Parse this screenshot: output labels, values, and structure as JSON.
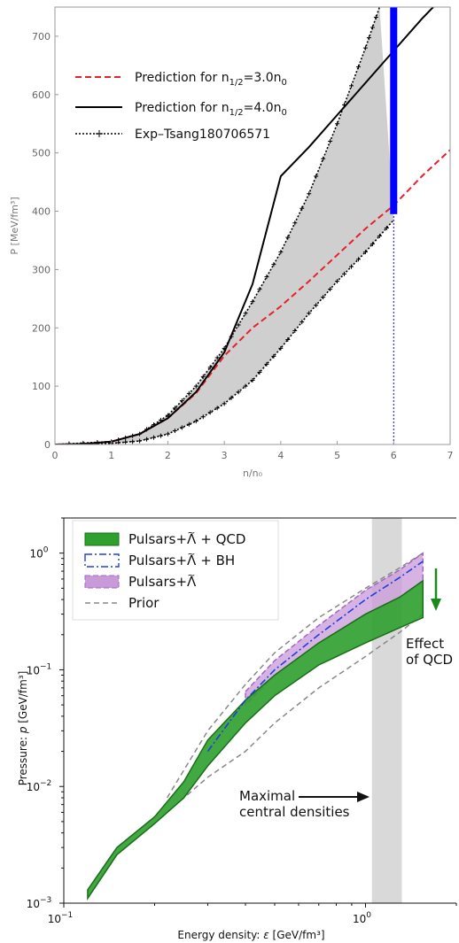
{
  "chart_data": [
    {
      "type": "line",
      "xlabel": "n/n₀",
      "ylabel": "P [MeV/fm³]",
      "xlim": [
        0,
        7
      ],
      "ylim": [
        0,
        750
      ],
      "xticks": [
        "0",
        "1",
        "2",
        "3",
        "4",
        "5",
        "6",
        "7"
      ],
      "yticks": [
        "0",
        "100",
        "200",
        "300",
        "400",
        "500",
        "600",
        "700"
      ],
      "grid": false,
      "legend_position": "top-left",
      "series": [
        {
          "name": "Prediction for n1/2=3.0n0",
          "legend_main": "Prediction for n",
          "legend_sub": "1/2",
          "legend_tail": "=3.0n",
          "legend_tail_sub": "0",
          "color": "#e8202a",
          "style": "dashed",
          "x": [
            0,
            0.5,
            1,
            1.5,
            2,
            2.5,
            3,
            3.5,
            4,
            4.5,
            5,
            5.5,
            6,
            6.5,
            7
          ],
          "y": [
            0,
            1,
            5,
            18,
            45,
            88,
            152,
            200,
            237,
            280,
            325,
            370,
            410,
            460,
            505
          ]
        },
        {
          "name": "Prediction for n1/2=4.0n0",
          "legend_main": "Prediction for n",
          "legend_sub": "1/2",
          "legend_tail": "=4.0n",
          "legend_tail_sub": "0",
          "color": "#000000",
          "style": "solid",
          "x": [
            0,
            0.5,
            1,
            1.5,
            2,
            2.5,
            3,
            3.5,
            4,
            4.5,
            5,
            5.5,
            6,
            6.5,
            6.7
          ],
          "y": [
            0,
            1,
            5,
            18,
            45,
            90,
            158,
            275,
            460,
            510,
            565,
            620,
            675,
            730,
            750
          ]
        },
        {
          "name": "Exp-Tsang180706571",
          "legend_main": "Exp–Tsang180706571",
          "color": "#000000",
          "style": "dotted-crosses",
          "upper_x": [
            0,
            1,
            1.5,
            2,
            2.5,
            3,
            3.5,
            4,
            4.5,
            5,
            5.5,
            5.75
          ],
          "upper_y": [
            0,
            5,
            18,
            50,
            100,
            165,
            245,
            330,
            430,
            550,
            680,
            750
          ],
          "lower_x": [
            0,
            1,
            1.5,
            2,
            2.5,
            3,
            3.5,
            4,
            4.5,
            5,
            5.5,
            6
          ],
          "lower_y": [
            0,
            2,
            6,
            18,
            40,
            70,
            110,
            165,
            225,
            280,
            330,
            385
          ]
        }
      ],
      "annotations": [
        {
          "kind": "vertical-bar",
          "x": 6,
          "y_range": [
            395,
            750
          ],
          "color": "#0000ff"
        },
        {
          "kind": "dotted-vline",
          "x": 6,
          "y_range": [
            0,
            395
          ],
          "color": "#0000ff"
        }
      ]
    },
    {
      "type": "area",
      "xlabel_prefix": "Energy density: ",
      "xlabel_sym": "ε",
      "xlabel_unit": " [GeV/fm³]",
      "ylabel_prefix": "Pressure: ",
      "ylabel_sym": "p",
      "ylabel_unit": " [GeV/fm³]",
      "x_scale": "log",
      "y_scale": "log",
      "xlim": [
        0.1,
        2
      ],
      "ylim": [
        0.001,
        2
      ],
      "xticks": [
        {
          "v": 0.1,
          "base": "10",
          "exp": "−1"
        },
        {
          "v": 1,
          "base": "10",
          "exp": "0"
        }
      ],
      "yticks": [
        {
          "v": 0.001,
          "base": "10",
          "exp": "−3"
        },
        {
          "v": 0.01,
          "base": "10",
          "exp": "−2"
        },
        {
          "v": 0.1,
          "base": "10",
          "exp": "−1"
        },
        {
          "v": 1,
          "base": "10",
          "exp": "0"
        }
      ],
      "legend_position": "top-left",
      "legend": [
        {
          "label_main": "Pulsars+",
          "label_sym": "Λ",
          "label_tail": " + QCD",
          "color": "#2ea02e",
          "swatch": "filled"
        },
        {
          "label_main": "Pulsars+",
          "label_sym": "Λ",
          "label_tail": " + BH",
          "color": "#1f3fdd",
          "swatch": "dashdot"
        },
        {
          "label_main": "Pulsars+",
          "label_sym": "Λ",
          "label_tail": "",
          "color": "#c89ad8",
          "swatch": "filled-dashed"
        },
        {
          "label_main": "Prior",
          "label_sym": "",
          "label_tail": "",
          "color": "#888888",
          "swatch": "dashed"
        }
      ],
      "series": [
        {
          "name": "Pulsars+Λ + QCD",
          "color": "#2ea02e",
          "band": true,
          "x": [
            0.12,
            0.15,
            0.2,
            0.25,
            0.3,
            0.4,
            0.5,
            0.7,
            1.0,
            1.3,
            1.55
          ],
          "lower": [
            0.0011,
            0.0026,
            0.0048,
            0.008,
            0.015,
            0.035,
            0.06,
            0.11,
            0.17,
            0.23,
            0.28
          ],
          "upper": [
            0.0013,
            0.003,
            0.0055,
            0.011,
            0.025,
            0.055,
            0.09,
            0.17,
            0.3,
            0.42,
            0.58
          ]
        },
        {
          "name": "Pulsars+Λ + BH",
          "color": "#1f3fdd",
          "band": false,
          "x": [
            0.3,
            0.4,
            0.5,
            0.7,
            1.0,
            1.3,
            1.55
          ],
          "y": [
            0.02,
            0.055,
            0.1,
            0.2,
            0.4,
            0.62,
            0.85
          ]
        },
        {
          "name": "Pulsars+Λ",
          "color": "#c89ad8",
          "band": true,
          "x": [
            0.4,
            0.5,
            0.7,
            1.0,
            1.3,
            1.55
          ],
          "lower": [
            0.05,
            0.09,
            0.17,
            0.3,
            0.42,
            0.58
          ],
          "upper": [
            0.065,
            0.12,
            0.24,
            0.48,
            0.72,
            1.0
          ]
        },
        {
          "name": "Prior",
          "color": "#888888",
          "band": false,
          "x_upper": [
            0.22,
            0.3,
            0.4,
            0.5,
            0.7,
            1.0,
            1.3,
            1.55
          ],
          "y_upper": [
            0.008,
            0.03,
            0.075,
            0.14,
            0.28,
            0.5,
            0.75,
            1.0
          ],
          "x_lower": [
            0.22,
            0.3,
            0.4,
            0.5,
            0.7,
            1.0,
            1.3,
            1.55
          ],
          "y_lower": [
            0.006,
            0.012,
            0.02,
            0.035,
            0.07,
            0.13,
            0.21,
            0.3
          ]
        }
      ],
      "shaded_region": {
        "x_range": [
          1.05,
          1.32
        ],
        "color": "#d9d9d9"
      },
      "annotations": [
        {
          "kind": "text",
          "lines": [
            "Maximal",
            "central densities"
          ]
        },
        {
          "kind": "text",
          "lines": [
            "Effect",
            "of QCD"
          ]
        },
        {
          "kind": "arrow",
          "color": "#111111"
        },
        {
          "kind": "arrow",
          "color": "#1a8a1a"
        }
      ]
    }
  ]
}
